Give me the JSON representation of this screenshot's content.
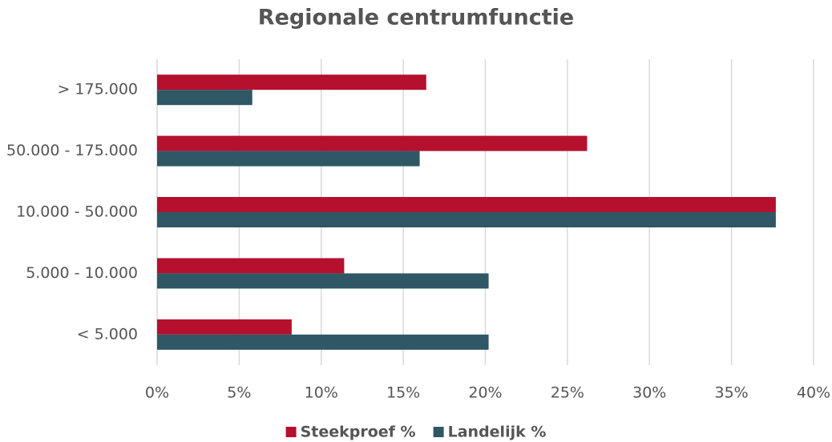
{
  "chart_data": {
    "type": "hbar",
    "title": "Regionale centrumfunctie",
    "categories": [
      "> 175.000",
      "50.000 - 175.000",
      "10.000 - 50.000",
      "5.000 - 10.000",
      "< 5.000"
    ],
    "series": [
      {
        "name": "Steekproef %",
        "color": "#b5102e",
        "values": [
          16.4,
          26.2,
          37.7,
          11.4,
          8.2
        ]
      },
      {
        "name": "Landelijk %",
        "color": "#2f5765",
        "values": [
          5.8,
          16.0,
          37.7,
          20.2,
          20.2
        ]
      }
    ],
    "xlim": [
      0,
      40
    ],
    "xticks": [
      {
        "value": 0,
        "label": "0%"
      },
      {
        "value": 5,
        "label": "5%"
      },
      {
        "value": 10,
        "label": "10%"
      },
      {
        "value": 15,
        "label": "15%"
      },
      {
        "value": 20,
        "label": "20%"
      },
      {
        "value": 25,
        "label": "25%"
      },
      {
        "value": 30,
        "label": "30%"
      },
      {
        "value": 35,
        "label": "35%"
      },
      {
        "value": 40,
        "label": "40%"
      }
    ],
    "grid": true,
    "legend": "bottom"
  }
}
